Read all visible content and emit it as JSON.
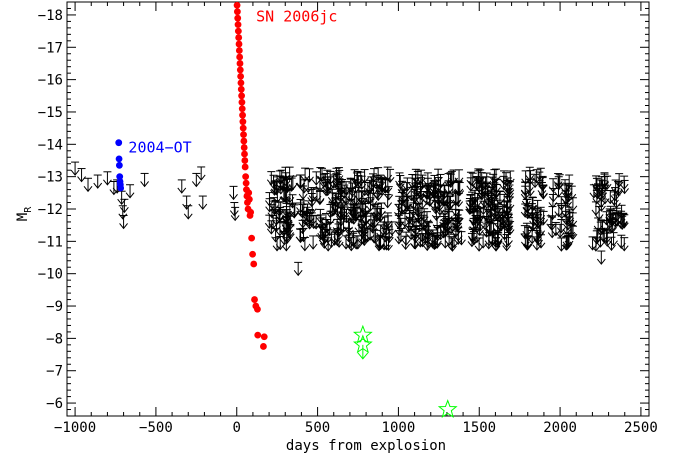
{
  "chart_data": {
    "type": "scatter",
    "xlabel": "days from explosion",
    "ylabel": "M",
    "ylabel_sub": "R",
    "xlim": [
      -1050,
      2550
    ],
    "ylim": [
      -5.6,
      -18.4
    ],
    "y_inverted": true,
    "xticks": [
      -1000,
      -500,
      0,
      500,
      1000,
      1500,
      2000,
      2500
    ],
    "xtick_labels": [
      "−1000",
      "−500",
      "0",
      "500",
      "1000",
      "1500",
      "2000",
      "2500"
    ],
    "yticks": [
      -6,
      -7,
      -8,
      -9,
      -10,
      -11,
      -12,
      -13,
      -14,
      -15,
      -16,
      -17,
      -18
    ],
    "ytick_labels": [
      "−6",
      "−7",
      "−8",
      "−9",
      "−10",
      "−11",
      "−12",
      "−13",
      "−14",
      "−15",
      "−16",
      "−17",
      "−18"
    ],
    "grid": false,
    "colors": {
      "sn": "#ff0000",
      "ot": "#0000ff",
      "upper_limit": "#000000",
      "star": "#00ff00"
    },
    "annotations": [
      {
        "text": "SN 2006jc",
        "x": 120,
        "y": -17.95,
        "color": "#ff0000"
      },
      {
        "text": "2004−OT",
        "x": -670,
        "y": -13.9,
        "color": "#0000ff"
      }
    ],
    "sn2006jc": {
      "x": [
        2,
        4,
        6,
        8,
        10,
        12,
        14,
        16,
        18,
        20,
        22,
        24,
        26,
        28,
        30,
        32,
        34,
        36,
        38,
        40,
        42,
        44,
        46,
        48,
        50,
        52,
        55,
        58,
        60,
        63,
        66,
        70,
        74,
        78,
        82,
        86,
        92,
        98,
        105,
        110,
        118,
        128,
        130,
        165,
        170
      ],
      "y": [
        -18.3,
        -18.1,
        -17.9,
        -17.7,
        -17.5,
        -17.3,
        -17.1,
        -16.9,
        -16.7,
        -16.5,
        -16.3,
        -16.1,
        -15.9,
        -15.7,
        -15.5,
        -15.3,
        -15.1,
        -14.9,
        -14.7,
        -14.5,
        -14.3,
        -14.1,
        -13.9,
        -13.7,
        -13.5,
        -13.3,
        -13.0,
        -12.8,
        -12.6,
        -12.4,
        -12.2,
        -12.0,
        -12.5,
        -12.3,
        -11.8,
        -11.9,
        -11.1,
        -10.6,
        -10.3,
        -9.2,
        -9.0,
        -8.9,
        -8.1,
        -7.75,
        -8.05
      ]
    },
    "ot2004": {
      "x": [
        -730,
        -728,
        -726,
        -724,
        -722,
        -720,
        -718
      ],
      "y": [
        -14.05,
        -13.55,
        -13.35,
        -13.0,
        -12.85,
        -12.75,
        -12.65
      ]
    },
    "green_stars": {
      "x": [
        780,
        780,
        1305
      ],
      "y": [
        -8.1,
        -7.8,
        -5.8
      ]
    },
    "green_star_limit_x": 780,
    "green_star_limit_y": -7.8
  }
}
